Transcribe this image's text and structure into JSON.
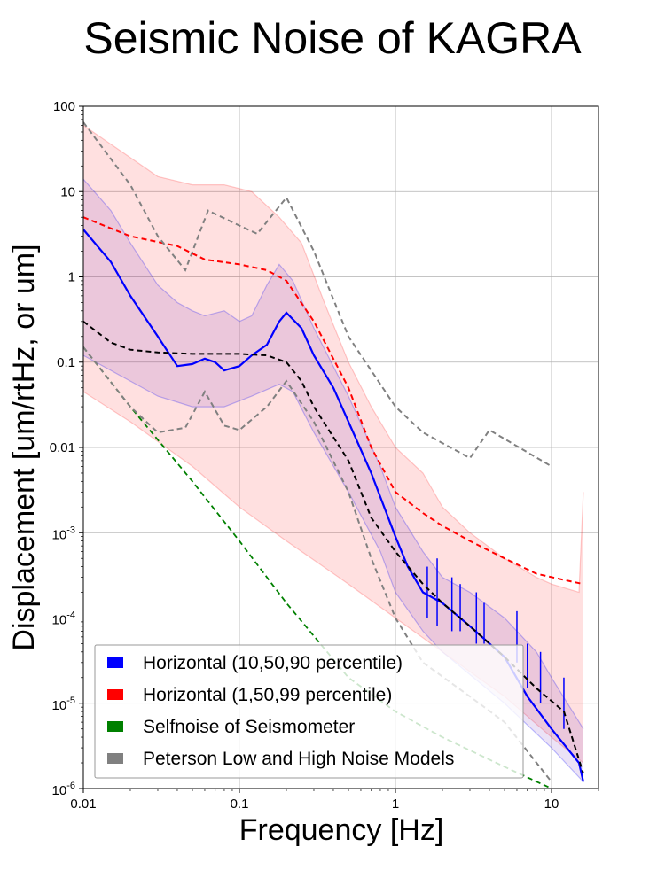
{
  "chart_data": {
    "type": "line",
    "title": "Seismic Noise of KAGRA",
    "xlabel": "Frequency [Hz]",
    "ylabel": "Displacement [um/rtHz, or um]",
    "xscale": "log",
    "yscale": "log",
    "xlim": [
      0.01,
      20
    ],
    "ylim": [
      1e-06,
      100
    ],
    "grid": true,
    "legend_position": "lower-left",
    "x_tick_labels": [
      {
        "value": 0.01,
        "label": "0.01"
      },
      {
        "value": 0.1,
        "label": "0.1"
      },
      {
        "value": 1,
        "label": "1"
      },
      {
        "value": 10,
        "label": "10"
      }
    ],
    "y_tick_labels": [
      {
        "value": 100,
        "label": "100"
      },
      {
        "value": 10,
        "label": "10"
      },
      {
        "value": 1,
        "label": "1"
      },
      {
        "value": 0.1,
        "label": "0.1"
      },
      {
        "value": 0.01,
        "label": "0.01"
      },
      {
        "value": 0.001,
        "label": "10",
        "exp": "-3"
      },
      {
        "value": 0.0001,
        "label": "10",
        "exp": "-4"
      },
      {
        "value": 1e-05,
        "label": "10",
        "exp": "-5"
      },
      {
        "value": 1e-06,
        "label": "10",
        "exp": "-6"
      }
    ],
    "legend": [
      {
        "label": "Horizontal (10,50,90 percentile)",
        "color": "#0000ff"
      },
      {
        "label": "Horizontal (1,50,99 percentile)",
        "color": "#ff0000"
      },
      {
        "label": "Selfnoise of Seismometer",
        "color": "#008000"
      },
      {
        "label": "Peterson Low and High Noise Models",
        "color": "#808080"
      }
    ],
    "bands": [
      {
        "fill": "#ff0000",
        "opacity": 0.12,
        "stroke": "#ff0000",
        "stroke_opacity": 0.2,
        "upper": [
          [
            0.01,
            60
          ],
          [
            0.02,
            25
          ],
          [
            0.03,
            15
          ],
          [
            0.05,
            12
          ],
          [
            0.08,
            12
          ],
          [
            0.12,
            10
          ],
          [
            0.18,
            5
          ],
          [
            0.25,
            2.5
          ],
          [
            0.35,
            0.5
          ],
          [
            0.5,
            0.1
          ],
          [
            0.7,
            0.03
          ],
          [
            1,
            0.01
          ],
          [
            1.5,
            0.005
          ],
          [
            2,
            0.002
          ],
          [
            3,
            0.001
          ],
          [
            5,
            0.0005
          ],
          [
            8,
            0.0003
          ],
          [
            10,
            0.00025
          ],
          [
            15,
            0.0002
          ],
          [
            16,
            0.003
          ]
        ],
        "lower": [
          [
            0.01,
            0.045
          ],
          [
            0.02,
            0.02
          ],
          [
            0.05,
            0.006
          ],
          [
            0.1,
            0.002
          ],
          [
            0.2,
            0.0008
          ],
          [
            0.5,
            0.00025
          ],
          [
            1,
            0.0001
          ],
          [
            2,
            4e-05
          ],
          [
            5,
            1.2e-05
          ],
          [
            10,
            4e-06
          ],
          [
            16,
            2e-06
          ]
        ]
      },
      {
        "fill": "#7b3fc4",
        "opacity": 0.15,
        "stroke": "#0000ff",
        "stroke_opacity": 0.25,
        "upper": [
          [
            0.01,
            14
          ],
          [
            0.015,
            6
          ],
          [
            0.02,
            2.5
          ],
          [
            0.03,
            0.8
          ],
          [
            0.04,
            0.5
          ],
          [
            0.05,
            0.4
          ],
          [
            0.06,
            0.35
          ],
          [
            0.08,
            0.4
          ],
          [
            0.1,
            0.3
          ],
          [
            0.12,
            0.35
          ],
          [
            0.15,
            0.8
          ],
          [
            0.18,
            1.4
          ],
          [
            0.22,
            0.9
          ],
          [
            0.3,
            0.25
          ],
          [
            0.5,
            0.04
          ],
          [
            0.8,
            0.006
          ],
          [
            1,
            0.002
          ],
          [
            1.5,
            0.0006
          ],
          [
            2,
            0.0003
          ],
          [
            3,
            0.0002
          ],
          [
            5,
            0.0001
          ],
          [
            8,
            4e-05
          ],
          [
            10,
            2e-05
          ],
          [
            16,
            5e-06
          ]
        ],
        "lower": [
          [
            0.01,
            0.12
          ],
          [
            0.02,
            0.06
          ],
          [
            0.03,
            0.04
          ],
          [
            0.05,
            0.03
          ],
          [
            0.08,
            0.03
          ],
          [
            0.12,
            0.04
          ],
          [
            0.18,
            0.055
          ],
          [
            0.22,
            0.045
          ],
          [
            0.3,
            0.015
          ],
          [
            0.5,
            0.003
          ],
          [
            0.8,
            0.0006
          ],
          [
            1,
            0.0002
          ],
          [
            1.5,
            7e-05
          ],
          [
            2,
            4e-05
          ],
          [
            5,
            1e-05
          ],
          [
            10,
            3e-06
          ],
          [
            16,
            1.2e-06
          ]
        ]
      }
    ],
    "series": [
      {
        "name": "Horizontal (10,50,90 percentile)",
        "color": "#0000ff",
        "dash": false,
        "width": 2.2,
        "points": [
          [
            0.01,
            3.6
          ],
          [
            0.015,
            1.5
          ],
          [
            0.02,
            0.6
          ],
          [
            0.03,
            0.2
          ],
          [
            0.04,
            0.09
          ],
          [
            0.05,
            0.095
          ],
          [
            0.06,
            0.11
          ],
          [
            0.07,
            0.1
          ],
          [
            0.08,
            0.08
          ],
          [
            0.1,
            0.09
          ],
          [
            0.12,
            0.12
          ],
          [
            0.15,
            0.16
          ],
          [
            0.18,
            0.3
          ],
          [
            0.2,
            0.38
          ],
          [
            0.25,
            0.25
          ],
          [
            0.3,
            0.12
          ],
          [
            0.4,
            0.05
          ],
          [
            0.5,
            0.02
          ],
          [
            0.7,
            0.005
          ],
          [
            1,
            0.0009
          ],
          [
            1.2,
            0.0004
          ],
          [
            1.5,
            0.0002
          ],
          [
            2,
            0.00015
          ],
          [
            3,
            8e-05
          ],
          [
            5,
            3.5e-05
          ],
          [
            7,
            1.2e-05
          ],
          [
            10,
            5e-06
          ],
          [
            15,
            2e-06
          ],
          [
            16,
            1.2e-06
          ]
        ]
      },
      {
        "name": "Horizontal (1,50,99 percentile)",
        "color": "#ff0000",
        "dash": true,
        "width": 2,
        "points": [
          [
            0.01,
            5
          ],
          [
            0.02,
            3
          ],
          [
            0.04,
            2.3
          ],
          [
            0.06,
            1.6
          ],
          [
            0.1,
            1.4
          ],
          [
            0.15,
            1.2
          ],
          [
            0.2,
            0.9
          ],
          [
            0.3,
            0.3
          ],
          [
            0.5,
            0.05
          ],
          [
            0.7,
            0.01
          ],
          [
            1,
            0.003
          ],
          [
            1.5,
            0.0017
          ],
          [
            2,
            0.0012
          ],
          [
            3,
            0.0008
          ],
          [
            5,
            0.0005
          ],
          [
            8,
            0.00033
          ],
          [
            12,
            0.00028
          ],
          [
            16,
            0.00025
          ]
        ]
      },
      {
        "name": "",
        "color": "#000000",
        "dash": true,
        "width": 2,
        "points": [
          [
            0.01,
            0.3
          ],
          [
            0.015,
            0.17
          ],
          [
            0.02,
            0.14
          ],
          [
            0.03,
            0.13
          ],
          [
            0.05,
            0.125
          ],
          [
            0.1,
            0.125
          ],
          [
            0.15,
            0.12
          ],
          [
            0.2,
            0.1
          ],
          [
            0.25,
            0.06
          ],
          [
            0.3,
            0.03
          ],
          [
            0.5,
            0.007
          ],
          [
            0.7,
            0.0015
          ],
          [
            1,
            0.0006
          ],
          [
            1.5,
            0.00025
          ],
          [
            2,
            0.00015
          ],
          [
            3,
            8e-05
          ],
          [
            5,
            3.5e-05
          ],
          [
            8,
            1.5e-05
          ],
          [
            12,
            8e-06
          ],
          [
            16,
            1.5e-06
          ]
        ]
      },
      {
        "name": "Selfnoise of Seismometer",
        "color": "#008000",
        "dash": true,
        "width": 1.8,
        "points": [
          [
            0.01,
            0.15
          ],
          [
            0.02,
            0.03
          ],
          [
            0.05,
            0.004
          ],
          [
            0.1,
            0.0008
          ],
          [
            0.2,
            0.00015
          ],
          [
            0.5,
            2e-05
          ],
          [
            1,
            8e-06
          ],
          [
            2,
            4e-06
          ],
          [
            5,
            1.8e-06
          ],
          [
            10,
            1e-06
          ]
        ]
      },
      {
        "name": "Peterson Low and High Noise Models",
        "color": "#808080",
        "dash": true,
        "width": 2,
        "points": [
          [
            0.01,
            65
          ],
          [
            0.02,
            12
          ],
          [
            0.03,
            3
          ],
          [
            0.045,
            1.2
          ],
          [
            0.063,
            6
          ],
          [
            0.1,
            4
          ],
          [
            0.13,
            3.2
          ],
          [
            0.2,
            8.5
          ],
          [
            0.3,
            2
          ],
          [
            0.5,
            0.2
          ],
          [
            1,
            0.03
          ],
          [
            1.5,
            0.015
          ],
          [
            3,
            0.0075
          ],
          [
            4,
            0.016
          ],
          [
            10,
            0.006
          ]
        ]
      },
      {
        "name": "",
        "color": "#808080",
        "dash": true,
        "width": 2,
        "points": [
          [
            0.01,
            0.15
          ],
          [
            0.02,
            0.03
          ],
          [
            0.03,
            0.015
          ],
          [
            0.045,
            0.017
          ],
          [
            0.06,
            0.045
          ],
          [
            0.08,
            0.018
          ],
          [
            0.1,
            0.016
          ],
          [
            0.15,
            0.03
          ],
          [
            0.2,
            0.06
          ],
          [
            0.3,
            0.02
          ],
          [
            0.5,
            0.003
          ],
          [
            0.7,
            0.0005
          ],
          [
            1,
            0.0001
          ],
          [
            1.5,
            3e-05
          ],
          [
            3,
            1.2e-05
          ],
          [
            5,
            6e-06
          ],
          [
            10,
            1.2e-06
          ]
        ]
      }
    ],
    "spikes": [
      {
        "x": 1.6,
        "y0": 0.0001,
        "y1": 0.0004
      },
      {
        "x": 1.85,
        "y0": 8e-05,
        "y1": 0.0005
      },
      {
        "x": 2.3,
        "y0": 7e-05,
        "y1": 0.0003
      },
      {
        "x": 2.6,
        "y0": 7e-05,
        "y1": 0.00025
      },
      {
        "x": 3.3,
        "y0": 5e-05,
        "y1": 0.0002
      },
      {
        "x": 3.7,
        "y0": 5e-05,
        "y1": 0.00015
      },
      {
        "x": 6,
        "y0": 3e-05,
        "y1": 0.00012
      },
      {
        "x": 7,
        "y0": 1.5e-05,
        "y1": 5e-05
      },
      {
        "x": 8.5,
        "y0": 1e-05,
        "y1": 4e-05
      },
      {
        "x": 12,
        "y0": 5e-06,
        "y1": 2e-05
      }
    ]
  }
}
